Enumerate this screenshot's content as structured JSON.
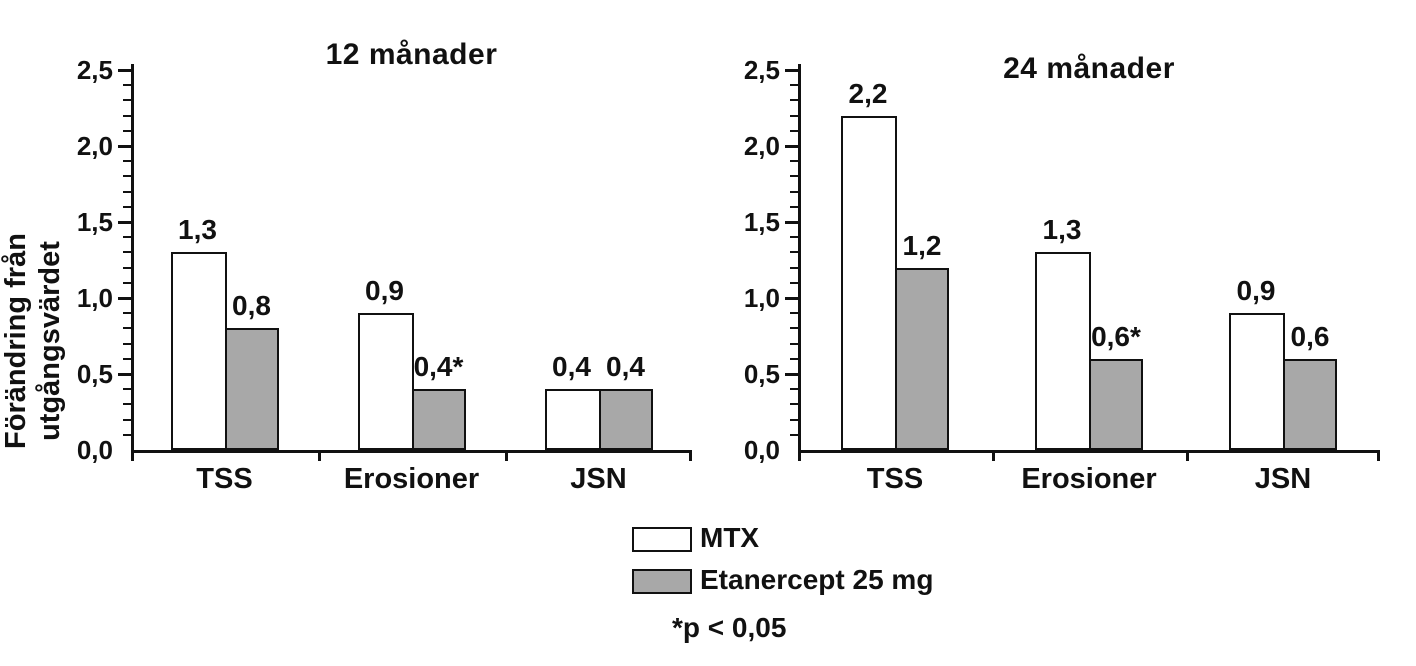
{
  "figure": {
    "y_axis_label": {
      "line1": "Förändring från",
      "line2": "utgångsvärdet"
    },
    "legend": {
      "position": "below-center",
      "items": [
        {
          "label": "MTX",
          "color": "#ffffff"
        },
        {
          "label": "Etanercept 25 mg",
          "color": "#a8a8a8"
        }
      ]
    },
    "footnote": "*p < 0,05",
    "colors": {
      "axis": "#111111",
      "bar_mtx": "#ffffff",
      "bar_etanercept": "#a8a8a8"
    }
  },
  "chart_data": [
    {
      "type": "bar",
      "title": "12 månader",
      "categories": [
        "TSS",
        "Erosioner",
        "JSN"
      ],
      "series": [
        {
          "name": "MTX",
          "fill": "#ffffff",
          "values": [
            1.3,
            0.9,
            0.4
          ],
          "value_labels": [
            "1,3",
            "0,9",
            "0,4"
          ]
        },
        {
          "name": "Etanercept 25 mg",
          "fill": "#a8a8a8",
          "values": [
            0.8,
            0.4,
            0.4
          ],
          "value_labels": [
            "0,8",
            "0,4*",
            "0,4"
          ]
        }
      ],
      "ylim": [
        0,
        2.5
      ],
      "ytick_values": [
        0,
        0.5,
        1.0,
        1.5,
        2.0,
        2.5
      ],
      "ytick_labels": [
        "0,0",
        "0,5",
        "1,0",
        "1,5",
        "2,0",
        "2,5"
      ],
      "minor_tick_step": 0.1,
      "grid": false
    },
    {
      "type": "bar",
      "title": "24 månader",
      "categories": [
        "TSS",
        "Erosioner",
        "JSN"
      ],
      "series": [
        {
          "name": "MTX",
          "fill": "#ffffff",
          "values": [
            2.2,
            1.3,
            0.9
          ],
          "value_labels": [
            "2,2",
            "1,3",
            "0,9"
          ]
        },
        {
          "name": "Etanercept 25 mg",
          "fill": "#a8a8a8",
          "values": [
            1.2,
            0.6,
            0.6
          ],
          "value_labels": [
            "1,2",
            "0,6*",
            "0,6"
          ]
        }
      ],
      "ylim": [
        0,
        2.5
      ],
      "ytick_values": [
        0,
        0.5,
        1.0,
        1.5,
        2.0,
        2.5
      ],
      "ytick_labels": [
        "0,0",
        "0,5",
        "1,0",
        "1,5",
        "2,0",
        "2,5"
      ],
      "minor_tick_step": 0.1,
      "grid": false
    }
  ]
}
